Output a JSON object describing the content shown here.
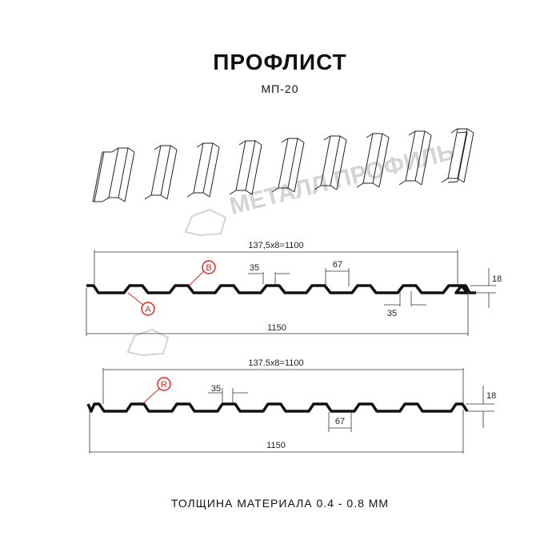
{
  "header": {
    "title": "ПРОФЛИСТ",
    "subtitle": "МП-20"
  },
  "watermark": {
    "text": "МЕТАЛЛ ПРОФИЛЬ",
    "color": "#d4d4d4"
  },
  "profile_a": {
    "pitch_label": "137,5x8=1100",
    "width_label": "1150",
    "top_width_label": "35",
    "bottom_top_label": "35",
    "rib_label": "67",
    "height_label": "18",
    "side_a_label": "A",
    "side_b_label": "B"
  },
  "profile_r": {
    "pitch_label": "137.5x8=1100",
    "width_label": "1150",
    "top_width_label": "35",
    "rib_label": "67",
    "height_label": "18",
    "side_r_label": "R"
  },
  "footer": {
    "text": "ТОЛЩИНА МАТЕРИАЛА 0.4 - 0.8 ММ"
  },
  "colors": {
    "marker": "#e52521",
    "line": "#111111"
  }
}
